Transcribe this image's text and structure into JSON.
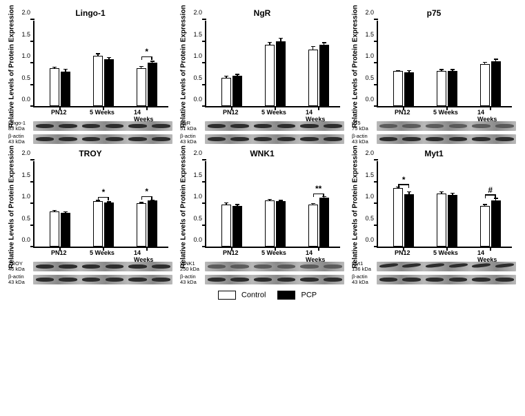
{
  "legend": {
    "control_label": "Control",
    "pcp_label": "PCP"
  },
  "ylabel": "Relative Levels of Protein Expression",
  "y": {
    "max": 2.0,
    "ticks": [
      0.0,
      0.5,
      1.0,
      1.5,
      2.0
    ]
  },
  "x_categories": [
    "PN12",
    "5 Weeks",
    "14 Weeks"
  ],
  "colors": {
    "control_fill": "#ffffff",
    "pcp_fill": "#000000",
    "bar_border": "#000000",
    "blot_bg_low": "#b9b9b9",
    "blot_bg_high": "#8a8a8a",
    "band_dark": "#2d2d2d",
    "band_mid": "#4f4f4f"
  },
  "panels": [
    {
      "title": "Lingo-1",
      "protein_label": "Lingo-1\n83 kDa",
      "loading_label": "β-actin\n43 kDa",
      "data": [
        {
          "ctrl": 0.88,
          "ctrl_err": 0.02,
          "pcp": 0.79,
          "pcp_err": 0.06
        },
        {
          "ctrl": 1.16,
          "ctrl_err": 0.05,
          "pcp": 1.08,
          "pcp_err": 0.04
        },
        {
          "ctrl": 0.88,
          "ctrl_err": 0.03,
          "pcp": 1.0,
          "pcp_err": 0.03
        }
      ],
      "sig": [
        {
          "group": 2,
          "label": "*",
          "y": 1.12
        }
      ],
      "band_style": "dark"
    },
    {
      "title": "NgR",
      "protein_label": "NgR\n51 kDa",
      "loading_label": "β-actin\n43 kDa",
      "data": [
        {
          "ctrl": 0.65,
          "ctrl_err": 0.04,
          "pcp": 0.7,
          "pcp_err": 0.03
        },
        {
          "ctrl": 1.41,
          "ctrl_err": 0.06,
          "pcp": 1.5,
          "pcp_err": 0.06
        },
        {
          "ctrl": 1.3,
          "ctrl_err": 0.07,
          "pcp": 1.42,
          "pcp_err": 0.04
        }
      ],
      "sig": [],
      "band_style": "dark"
    },
    {
      "title": "p75",
      "protein_label": "p75\n75 kDa",
      "loading_label": "β-actin\n43 kDa",
      "data": [
        {
          "ctrl": 0.81,
          "ctrl_err": 0.01,
          "pcp": 0.78,
          "pcp_err": 0.04
        },
        {
          "ctrl": 0.81,
          "ctrl_err": 0.03,
          "pcp": 0.81,
          "pcp_err": 0.03
        },
        {
          "ctrl": 0.97,
          "ctrl_err": 0.04,
          "pcp": 1.03,
          "pcp_err": 0.05
        }
      ],
      "sig": [],
      "band_style": "mid"
    },
    {
      "title": "TROY",
      "protein_label": "TROY\n46 kDa",
      "loading_label": "β-actin\n43 kDa",
      "data": [
        {
          "ctrl": 0.81,
          "ctrl_err": 0.02,
          "pcp": 0.78,
          "pcp_err": 0.02
        },
        {
          "ctrl": 1.05,
          "ctrl_err": 0.01,
          "pcp": 1.01,
          "pcp_err": 0.02
        },
        {
          "ctrl": 1.0,
          "ctrl_err": 0.02,
          "pcp": 1.06,
          "pcp_err": 0.01
        }
      ],
      "sig": [
        {
          "group": 1,
          "label": "*",
          "y": 1.12
        },
        {
          "group": 2,
          "label": "*",
          "y": 1.14
        }
      ],
      "band_style": "dark"
    },
    {
      "title": "WNK1",
      "protein_label": "WNK1\n250 kDa",
      "loading_label": "β-actin\n43 kDa",
      "data": [
        {
          "ctrl": 0.97,
          "ctrl_err": 0.04,
          "pcp": 0.94,
          "pcp_err": 0.03
        },
        {
          "ctrl": 1.07,
          "ctrl_err": 0.02,
          "pcp": 1.05,
          "pcp_err": 0.01
        },
        {
          "ctrl": 0.97,
          "ctrl_err": 0.02,
          "pcp": 1.12,
          "pcp_err": 0.03
        }
      ],
      "sig": [
        {
          "group": 2,
          "label": "**",
          "y": 1.2
        }
      ],
      "band_style": "mid"
    },
    {
      "title": "Myt1",
      "protein_label": "Myt1\n136 kDa",
      "loading_label": "β-actin\n43 kDa",
      "data": [
        {
          "ctrl": 1.35,
          "ctrl_err": 0.02,
          "pcp": 1.21,
          "pcp_err": 0.05
        },
        {
          "ctrl": 1.22,
          "ctrl_err": 0.04,
          "pcp": 1.19,
          "pcp_err": 0.04
        },
        {
          "ctrl": 0.94,
          "ctrl_err": 0.03,
          "pcp": 1.07,
          "pcp_err": 0.04
        }
      ],
      "sig": [
        {
          "group": 0,
          "label": "*",
          "y": 1.42
        },
        {
          "group": 2,
          "label": "#",
          "y": 1.18
        }
      ],
      "band_style": "curve"
    }
  ]
}
